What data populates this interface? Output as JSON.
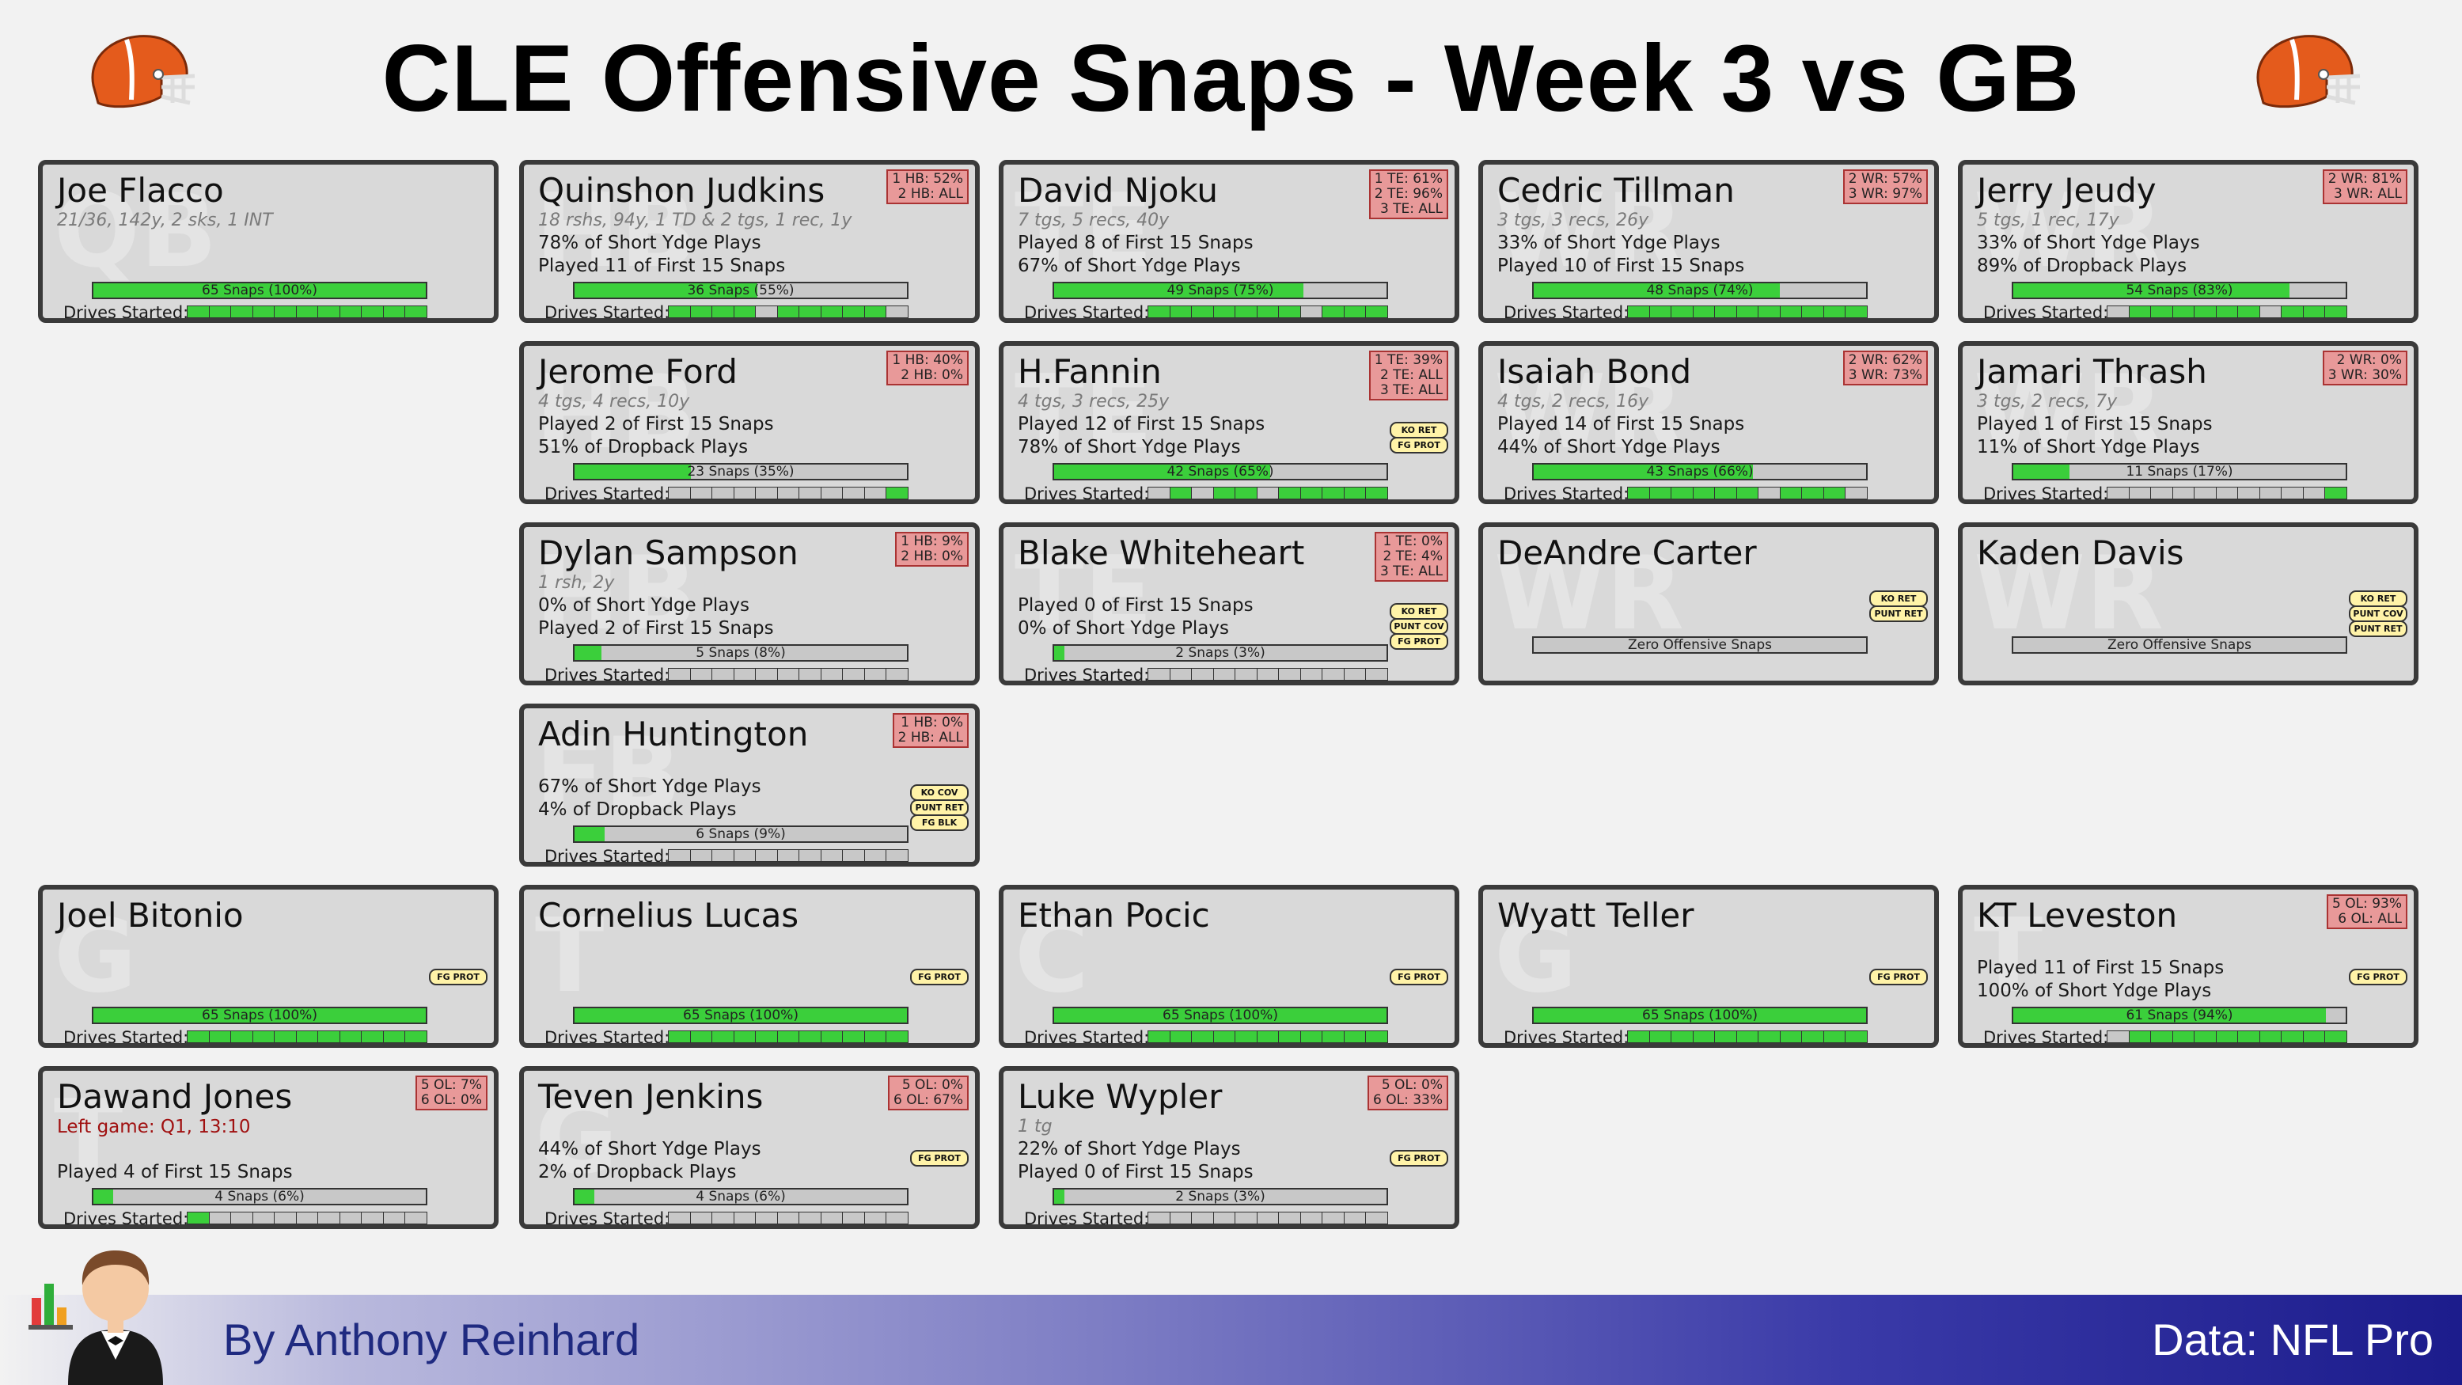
{
  "title": "CLE Offensive Snaps - Week 3 vs GB",
  "footer": {
    "byline": "By Anthony Reinhard",
    "source": "Data: NFL Pro"
  },
  "colors": {
    "bar_fill": "#3bcf3b",
    "card_bg": "#d9d9d9",
    "pct_box": "#e89999",
    "injury_text": "#a01010"
  },
  "drives_label": "Drives Started:",
  "players": [
    {
      "name": "Joe Flacco",
      "pos": "QB",
      "sub": "21/36, 142y, 2 sks, 1 INT",
      "lines": [
        "",
        ""
      ],
      "bar": "65 Snaps (100%)",
      "share": 1.0,
      "drives": [
        1,
        1,
        1,
        1,
        1,
        1,
        1,
        1,
        1,
        1,
        1
      ],
      "pcts": [],
      "st": []
    },
    {
      "name": "Quinshon Judkins",
      "pos": "HB",
      "sub": "18 rshs, 94y, 1 TD & 2 tgs, 1 rec, 1y",
      "lines": [
        "78% of Short Ydge Plays",
        "Played 11 of First 15 Snaps"
      ],
      "bar": "36 Snaps (55%)",
      "share": 0.55,
      "drives": [
        1,
        1,
        1,
        1,
        0,
        1,
        1,
        1,
        1,
        1,
        0
      ],
      "pcts": [
        "1 HB: 52%",
        "2 HB: ALL"
      ],
      "st": []
    },
    {
      "name": "David Njoku",
      "pos": "TE",
      "sub": "7 tgs, 5 recs, 40y",
      "lines": [
        "Played 8 of First 15 Snaps",
        "67% of Short Ydge Plays"
      ],
      "bar": "49 Snaps (75%)",
      "share": 0.75,
      "drives": [
        1,
        1,
        1,
        1,
        1,
        1,
        1,
        0,
        1,
        1,
        1
      ],
      "pcts": [
        "1 TE: 61%",
        "2 TE: 96%",
        "3 TE: ALL"
      ],
      "st": []
    },
    {
      "name": "Cedric Tillman",
      "pos": "WR",
      "sub": "3 tgs, 3 recs, 26y",
      "lines": [
        "33% of Short Ydge Plays",
        "Played 10 of First 15 Snaps"
      ],
      "bar": "48 Snaps (74%)",
      "share": 0.74,
      "drives": [
        1,
        1,
        1,
        1,
        1,
        1,
        1,
        1,
        1,
        1,
        1
      ],
      "pcts": [
        "2 WR: 57%",
        "3 WR: 97%"
      ],
      "st": []
    },
    {
      "name": "Jerry Jeudy",
      "pos": "WR",
      "sub": "5 tgs, 1 rec, 17y",
      "lines": [
        "33% of Short Ydge Plays",
        "89% of Dropback Plays"
      ],
      "bar": "54 Snaps (83%)",
      "share": 0.83,
      "drives": [
        0,
        1,
        1,
        1,
        1,
        1,
        1,
        0,
        1,
        1,
        1
      ],
      "pcts": [
        "2 WR: 81%",
        "3 WR: ALL"
      ],
      "st": []
    },
    {
      "name": "Jerome Ford",
      "pos": "HB",
      "sub": "4 tgs, 4 recs, 10y",
      "lines": [
        "Played 2 of First 15 Snaps",
        "51% of Dropback Plays"
      ],
      "bar": "23 Snaps (35%)",
      "share": 0.35,
      "drives": [
        0,
        0,
        0,
        0,
        0,
        0,
        0,
        0,
        0,
        0,
        1
      ],
      "pcts": [
        "1 HB: 40%",
        "2 HB: 0%"
      ],
      "st": []
    },
    {
      "name": "H.Fannin",
      "pos": "TE",
      "sub": "4 tgs, 3 recs, 25y",
      "lines": [
        "Played 12 of First 15 Snaps",
        "78% of Short Ydge Plays"
      ],
      "bar": "42 Snaps (65%)",
      "share": 0.65,
      "drives": [
        0,
        1,
        0,
        1,
        1,
        0,
        1,
        1,
        1,
        1,
        1
      ],
      "pcts": [
        "1 TE: 39%",
        "2 TE: ALL",
        "3 TE: ALL"
      ],
      "st": [
        "KO RET",
        "FG PROT"
      ]
    },
    {
      "name": "Isaiah Bond",
      "pos": "WR",
      "sub": "4 tgs, 2 recs, 16y",
      "lines": [
        "Played 14 of First 15 Snaps",
        "44% of Short Ydge Plays"
      ],
      "bar": "43 Snaps (66%)",
      "share": 0.66,
      "drives": [
        1,
        1,
        1,
        1,
        1,
        1,
        0,
        1,
        1,
        1,
        0
      ],
      "pcts": [
        "2 WR: 62%",
        "3 WR: 73%"
      ],
      "st": []
    },
    {
      "name": "Jamari Thrash",
      "pos": "WR",
      "sub": "3 tgs, 2 recs, 7y",
      "lines": [
        "Played 1 of First 15 Snaps",
        "11% of Short Ydge Plays"
      ],
      "bar": "11 Snaps (17%)",
      "share": 0.17,
      "drives": [
        0,
        0,
        0,
        0,
        0,
        0,
        0,
        0,
        0,
        0,
        1
      ],
      "pcts": [
        "2 WR: 0%",
        "3 WR: 30%"
      ],
      "st": []
    },
    {
      "name": "Dylan Sampson",
      "pos": "HB",
      "sub": "1 rsh, 2y",
      "lines": [
        "0% of Short Ydge Plays",
        "Played 2 of First 15 Snaps"
      ],
      "bar": "5 Snaps (8%)",
      "share": 0.08,
      "drives": [
        0,
        0,
        0,
        0,
        0,
        0,
        0,
        0,
        0,
        0,
        0
      ],
      "pcts": [
        "1 HB: 9%",
        "2 HB: 0%"
      ],
      "st": []
    },
    {
      "name": "Blake Whiteheart",
      "pos": "TE",
      "sub": "",
      "lines": [
        "Played 0 of First 15 Snaps",
        "0% of Short Ydge Plays"
      ],
      "bar": "2 Snaps (3%)",
      "share": 0.03,
      "drives": [
        0,
        0,
        0,
        0,
        0,
        0,
        0,
        0,
        0,
        0,
        0
      ],
      "pcts": [
        "1 TE: 0%",
        "2 TE: 4%",
        "3 TE: ALL"
      ],
      "st": [
        "KO RET",
        "PUNT COV",
        "FG PROT"
      ]
    },
    {
      "name": "DeAndre Carter",
      "pos": "WR",
      "sub": "",
      "lines": [
        "",
        ""
      ],
      "bar": "Zero Offensive Snaps",
      "share": 0,
      "drives": null,
      "pcts": [],
      "st": [
        "KO RET",
        "PUNT RET"
      ]
    },
    {
      "name": "Kaden Davis",
      "pos": "WR",
      "sub": "",
      "lines": [
        "",
        ""
      ],
      "bar": "Zero Offensive Snaps",
      "share": 0,
      "drives": null,
      "pcts": [],
      "st": [
        "KO RET",
        "PUNT COV",
        "PUNT RET"
      ]
    },
    {
      "name": "Adin Huntington",
      "pos": "FB",
      "sub": "",
      "lines": [
        "67% of Short Ydge Plays",
        "4% of Dropback Plays"
      ],
      "bar": "6 Snaps (9%)",
      "share": 0.09,
      "drives": [
        0,
        0,
        0,
        0,
        0,
        0,
        0,
        0,
        0,
        0,
        0
      ],
      "pcts": [
        "1 HB: 0%",
        "2 HB: ALL"
      ],
      "st": [
        "KO COV",
        "PUNT RET",
        "FG BLK"
      ]
    },
    {
      "name": "Joel Bitonio",
      "pos": "G",
      "sub": "",
      "lines": [
        "",
        ""
      ],
      "bar": "65 Snaps (100%)",
      "share": 1.0,
      "drives": [
        1,
        1,
        1,
        1,
        1,
        1,
        1,
        1,
        1,
        1,
        1
      ],
      "pcts": [],
      "st": [
        "FG PROT"
      ]
    },
    {
      "name": "Cornelius Lucas",
      "pos": "T",
      "sub": "",
      "lines": [
        "",
        ""
      ],
      "bar": "65 Snaps (100%)",
      "share": 1.0,
      "drives": [
        1,
        1,
        1,
        1,
        1,
        1,
        1,
        1,
        1,
        1,
        1
      ],
      "pcts": [],
      "st": [
        "FG PROT"
      ]
    },
    {
      "name": "Ethan Pocic",
      "pos": "C",
      "sub": "",
      "lines": [
        "",
        ""
      ],
      "bar": "65 Snaps (100%)",
      "share": 1.0,
      "drives": [
        1,
        1,
        1,
        1,
        1,
        1,
        1,
        1,
        1,
        1,
        1
      ],
      "pcts": [],
      "st": [
        "FG PROT"
      ]
    },
    {
      "name": "Wyatt Teller",
      "pos": "G",
      "sub": "",
      "lines": [
        "",
        ""
      ],
      "bar": "65 Snaps (100%)",
      "share": 1.0,
      "drives": [
        1,
        1,
        1,
        1,
        1,
        1,
        1,
        1,
        1,
        1,
        1
      ],
      "pcts": [],
      "st": [
        "FG PROT"
      ]
    },
    {
      "name": "KT Leveston",
      "pos": "T",
      "sub": "",
      "lines": [
        "Played 11 of First 15 Snaps",
        "100% of Short Ydge Plays"
      ],
      "bar": "61 Snaps (94%)",
      "share": 0.94,
      "drives": [
        0,
        1,
        1,
        1,
        1,
        1,
        1,
        1,
        1,
        1,
        1
      ],
      "pcts": [
        "5 OL: 93%",
        "6 OL: ALL"
      ],
      "st": [
        "FG PROT"
      ]
    },
    {
      "name": "Dawand Jones",
      "pos": "T",
      "sub": "Left game: Q1, 13:10",
      "injury": true,
      "lines": [
        "",
        "Played 4 of First 15 Snaps"
      ],
      "bar": "4 Snaps (6%)",
      "share": 0.06,
      "drives": [
        1,
        0,
        0,
        0,
        0,
        0,
        0,
        0,
        0,
        0,
        0
      ],
      "pcts": [
        "5 OL: 7%",
        "6 OL: 0%"
      ],
      "st": []
    },
    {
      "name": "Teven Jenkins",
      "pos": "G",
      "sub": "",
      "lines": [
        "44% of Short Ydge Plays",
        "2% of Dropback Plays"
      ],
      "bar": "4 Snaps (6%)",
      "share": 0.06,
      "drives": [
        0,
        0,
        0,
        0,
        0,
        0,
        0,
        0,
        0,
        0,
        0
      ],
      "pcts": [
        "5 OL: 0%",
        "6 OL: 67%"
      ],
      "st": [
        "FG PROT"
      ]
    },
    {
      "name": "Luke Wypler",
      "pos": "",
      "sub": "1 tg",
      "lines": [
        "22% of Short Ydge Plays",
        "Played 0 of First 15 Snaps"
      ],
      "bar": "2 Snaps (3%)",
      "share": 0.03,
      "drives": [
        0,
        0,
        0,
        0,
        0,
        0,
        0,
        0,
        0,
        0,
        0
      ],
      "pcts": [
        "5 OL: 0%",
        "6 OL: 33%"
      ],
      "st": [
        "FG PROT"
      ]
    }
  ]
}
